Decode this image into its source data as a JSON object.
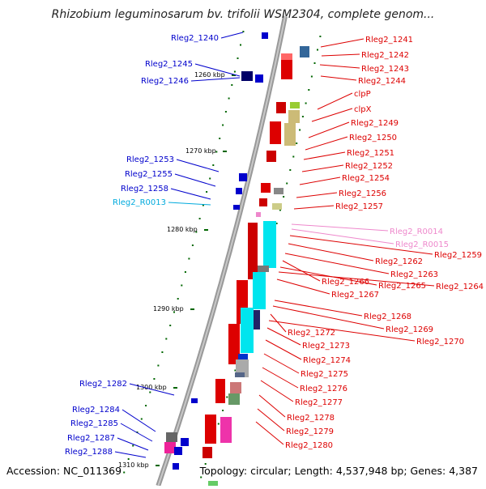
{
  "title": "Rhizobium leguminosarum bv. trifolii WSM2304, complete genom...",
  "footer": {
    "accession": "Accession: NC_011369",
    "topology": "Topology: circular; Length: 4,537,948 bp; Genes: 4,387"
  },
  "colors": {
    "left_label": "#0000cc",
    "right_label": "#dd0000",
    "rna_label": "#00aadd",
    "pink_label": "#ee88cc",
    "tick": "#006600",
    "axis": "#888888"
  },
  "scale_labels": [
    "1260 kbp",
    "1270 kbp",
    "1280 kbp",
    "1290 kbp",
    "1300 kbp",
    "1310 kbp"
  ],
  "left_labels": [
    "Rleg2_1240",
    "Rleg2_1245",
    "Rleg2_1246",
    "Rleg2_1253",
    "Rleg2_1255",
    "Rleg2_1258",
    "Rleg2_R0013",
    "Rleg2_1282",
    "Rleg2_1284",
    "Rleg2_1285",
    "Rleg2_1287",
    "Rleg2_1288"
  ],
  "right_labels": [
    "Rleg2_1241",
    "Rleg2_1242",
    "Rleg2_1243",
    "Rleg2_1244",
    "clpP",
    "clpX",
    "Rleg2_1249",
    "Rleg2_1250",
    "Rleg2_1251",
    "Rleg2_1252",
    "Rleg2_1254",
    "Rleg2_1256",
    "Rleg2_1257",
    "Rleg2_R0014",
    "Rleg2_R0015",
    "Rleg2_1259",
    "Rleg2_1262",
    "Rleg2_1263",
    "Rleg2_1266",
    "Rleg2_1265",
    "Rleg2_1264",
    "Rleg2_1267",
    "Rleg2_1268",
    "Rleg2_1269",
    "Rleg2_1272",
    "Rleg2_1270",
    "Rleg2_1273",
    "Rleg2_1274",
    "Rleg2_1275",
    "Rleg2_1276",
    "Rleg2_1277",
    "Rleg2_1278",
    "Rleg2_1279",
    "Rleg2_1280"
  ]
}
